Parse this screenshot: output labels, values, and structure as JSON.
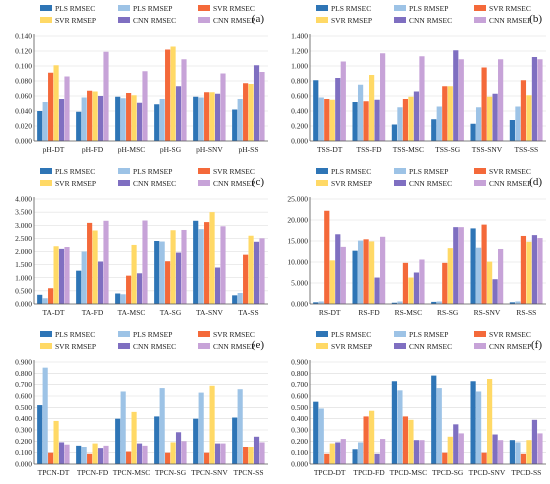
{
  "colors": {
    "PLS RMSEC": "#2e75b6",
    "PLS RMSEP": "#9dc3e6",
    "SVR RMSEC": "#f4693a",
    "SVR RMSEP": "#ffd966",
    "CNN RMSEC": "#7f6fc1",
    "CNN RMSEP": "#c7a3d8"
  },
  "chart_data": [
    {
      "type": "bar",
      "panel": "(a)",
      "categories": [
        "pH-DT",
        "pH-FD",
        "pH-MSC",
        "pH-SG",
        "pH-SNV",
        "pH-SS"
      ],
      "ylim": [
        0,
        0.14
      ],
      "yticks": [
        "0.000",
        "0.020",
        "0.040",
        "0.060",
        "0.080",
        "0.100",
        "0.120",
        "0.140"
      ],
      "legend_position": "top",
      "series": [
        {
          "name": "PLS RMSEC",
          "values": [
            0.04,
            0.039,
            0.059,
            0.049,
            0.059,
            0.042
          ]
        },
        {
          "name": "PLS RMSEP",
          "values": [
            0.052,
            0.058,
            0.057,
            0.056,
            0.058,
            0.056
          ]
        },
        {
          "name": "SVR RMSEC",
          "values": [
            0.091,
            0.067,
            0.064,
            0.122,
            0.065,
            0.077
          ]
        },
        {
          "name": "SVR RMSEP",
          "values": [
            0.101,
            0.066,
            0.061,
            0.126,
            0.065,
            0.076
          ]
        },
        {
          "name": "CNN RMSEC",
          "values": [
            0.056,
            0.06,
            0.051,
            0.073,
            0.063,
            0.101
          ]
        },
        {
          "name": "CNN RMSEP",
          "values": [
            0.086,
            0.119,
            0.093,
            0.109,
            0.09,
            0.092
          ]
        }
      ]
    },
    {
      "type": "bar",
      "panel": "(b)",
      "categories": [
        "TSS-DT",
        "TSS-FD",
        "TSS-MSC",
        "TSS-SG",
        "TSS-SNV",
        "TSS-SS"
      ],
      "ylim": [
        0,
        1.4
      ],
      "yticks": [
        "0.000",
        "0.200",
        "0.400",
        "0.600",
        "0.800",
        "1.000",
        "1.200",
        "1.400"
      ],
      "legend_position": "top",
      "series": [
        {
          "name": "PLS RMSEC",
          "values": [
            0.81,
            0.52,
            0.22,
            0.29,
            0.23,
            0.28
          ]
        },
        {
          "name": "PLS RMSEP",
          "values": [
            0.58,
            0.75,
            0.45,
            0.46,
            0.45,
            0.46
          ]
        },
        {
          "name": "SVR RMSEC",
          "values": [
            0.56,
            0.53,
            0.56,
            0.73,
            0.98,
            0.81
          ]
        },
        {
          "name": "SVR RMSEP",
          "values": [
            0.55,
            0.88,
            0.59,
            0.73,
            0.59,
            0.61
          ]
        },
        {
          "name": "CNN RMSEC",
          "values": [
            0.84,
            0.55,
            0.66,
            1.21,
            0.63,
            1.12
          ]
        },
        {
          "name": "CNN RMSEP",
          "values": [
            1.06,
            1.17,
            1.13,
            1.09,
            1.09,
            1.09
          ]
        }
      ]
    },
    {
      "type": "bar",
      "panel": "(c)",
      "categories": [
        "TA-DT",
        "TA-FD",
        "TA-MSC",
        "TA-SG",
        "TA-SNV",
        "TA-SS"
      ],
      "ylim": [
        0,
        4.0
      ],
      "yticks": [
        "0.000",
        "0.500",
        "1.000",
        "1.500",
        "2.000",
        "2.500",
        "3.000",
        "3.500",
        "4.000"
      ],
      "legend_position": "top",
      "series": [
        {
          "name": "PLS RMSEC",
          "values": [
            0.35,
            1.27,
            0.4,
            2.4,
            3.17,
            0.33
          ]
        },
        {
          "name": "PLS RMSEP",
          "values": [
            0.22,
            2.0,
            0.37,
            2.38,
            2.85,
            0.42
          ]
        },
        {
          "name": "SVR RMSEC",
          "values": [
            0.6,
            3.09,
            1.08,
            1.63,
            3.12,
            1.88
          ]
        },
        {
          "name": "SVR RMSEP",
          "values": [
            2.2,
            2.8,
            2.25,
            2.81,
            3.5,
            2.6
          ]
        },
        {
          "name": "CNN RMSEC",
          "values": [
            2.1,
            1.62,
            1.17,
            1.96,
            1.39,
            2.37
          ]
        },
        {
          "name": "CNN RMSEP",
          "values": [
            2.17,
            3.17,
            3.18,
            2.82,
            2.96,
            2.5
          ]
        }
      ]
    },
    {
      "type": "bar",
      "panel": "(d)",
      "categories": [
        "RS-DT",
        "RS-FD",
        "RS-MSC",
        "RS-SG",
        "RS-SNV",
        "RS-SS"
      ],
      "ylim": [
        0,
        25.0
      ],
      "yticks": [
        "0.000",
        "5.000",
        "10.000",
        "15.000",
        "20.000",
        "25.000"
      ],
      "legend_position": "top",
      "series": [
        {
          "name": "PLS RMSEC",
          "values": [
            0.4,
            12.7,
            0.3,
            0.5,
            18.0,
            0.4
          ]
        },
        {
          "name": "PLS RMSEP",
          "values": [
            0.6,
            15.1,
            0.6,
            0.6,
            13.4,
            0.6
          ]
        },
        {
          "name": "SVR RMSEC",
          "values": [
            22.2,
            15.4,
            9.8,
            9.8,
            18.9,
            16.2
          ]
        },
        {
          "name": "SVR RMSEP",
          "values": [
            10.4,
            14.9,
            6.3,
            13.3,
            10.1,
            14.8
          ]
        },
        {
          "name": "CNN RMSEC",
          "values": [
            16.6,
            6.3,
            7.5,
            18.3,
            5.9,
            16.4
          ]
        },
        {
          "name": "CNN RMSEP",
          "values": [
            13.6,
            16.0,
            10.6,
            18.3,
            13.1,
            15.7
          ]
        }
      ]
    },
    {
      "type": "bar",
      "panel": "(e)",
      "categories": [
        "TPCN-DT",
        "TPCN-FD",
        "TPCN-MSC",
        "TPCN-SG",
        "TPCN-SNV",
        "TPCN-SS"
      ],
      "ylim": [
        0,
        0.9
      ],
      "yticks": [
        "0.000",
        "0.100",
        "0.200",
        "0.300",
        "0.400",
        "0.500",
        "0.600",
        "0.700",
        "0.800",
        "0.900"
      ],
      "legend_position": "top",
      "series": [
        {
          "name": "PLS RMSEC",
          "values": [
            0.52,
            0.16,
            0.4,
            0.42,
            0.4,
            0.41
          ]
        },
        {
          "name": "PLS RMSEP",
          "values": [
            0.85,
            0.15,
            0.64,
            0.67,
            0.63,
            0.66
          ]
        },
        {
          "name": "SVR RMSEC",
          "values": [
            0.1,
            0.09,
            0.11,
            0.1,
            0.1,
            0.15
          ]
        },
        {
          "name": "SVR RMSEP",
          "values": [
            0.38,
            0.18,
            0.46,
            0.19,
            0.69,
            0.15
          ]
        },
        {
          "name": "CNN RMSEC",
          "values": [
            0.19,
            0.14,
            0.18,
            0.28,
            0.18,
            0.24
          ]
        },
        {
          "name": "CNN RMSEP",
          "values": [
            0.17,
            0.16,
            0.16,
            0.2,
            0.18,
            0.19
          ]
        }
      ]
    },
    {
      "type": "bar",
      "panel": "(f)",
      "categories": [
        "TPCD-DT",
        "TPCD-FD",
        "TPCD-MSC",
        "TPCD-SG",
        "TPCD-SNV",
        "TPCD-SS"
      ],
      "ylim": [
        0,
        0.9
      ],
      "yticks": [
        "0.000",
        "0.100",
        "0.200",
        "0.300",
        "0.400",
        "0.500",
        "0.600",
        "0.700",
        "0.800",
        "0.900"
      ],
      "legend_position": "top",
      "series": [
        {
          "name": "PLS RMSEC",
          "values": [
            0.55,
            0.13,
            0.73,
            0.78,
            0.73,
            0.21
          ]
        },
        {
          "name": "PLS RMSEP",
          "values": [
            0.49,
            0.19,
            0.65,
            0.67,
            0.64,
            0.19
          ]
        },
        {
          "name": "SVR RMSEC",
          "values": [
            0.09,
            0.42,
            0.42,
            0.1,
            0.1,
            0.09
          ]
        },
        {
          "name": "SVR RMSEP",
          "values": [
            0.18,
            0.47,
            0.39,
            0.24,
            0.75,
            0.21
          ]
        },
        {
          "name": "CNN RMSEC",
          "values": [
            0.19,
            0.09,
            0.21,
            0.35,
            0.26,
            0.39
          ]
        },
        {
          "name": "CNN RMSEP",
          "values": [
            0.22,
            0.22,
            0.21,
            0.27,
            0.21,
            0.27
          ]
        }
      ]
    }
  ]
}
